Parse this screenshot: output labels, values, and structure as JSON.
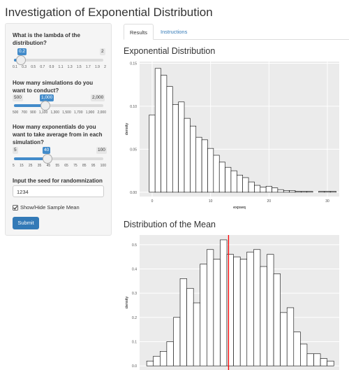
{
  "page_title": "Investigation of Exponential Distribution",
  "sidebar": {
    "lambda": {
      "label": "What is the lambda of the distribution?",
      "value": "0.2",
      "max": "2",
      "ticks": [
        "0.1",
        "0.3",
        "0.5",
        "0.7",
        "0.9",
        "1.1",
        "1.3",
        "1.5",
        "1.7",
        "1.9",
        "2"
      ]
    },
    "simulations": {
      "label": "How many simulations do you want to conduct?",
      "min": "500",
      "value": "1,000",
      "max": "2,000",
      "ticks": [
        "500",
        "700",
        "900",
        "1,100",
        "1,300",
        "1,500",
        "1,700",
        "1,900",
        "2,000"
      ]
    },
    "exponentials": {
      "label": "How many exponentials do you want to take average from in each simulation?",
      "min": "5",
      "value": "40",
      "max": "100",
      "ticks": [
        "5",
        "15",
        "25",
        "35",
        "45",
        "55",
        "65",
        "75",
        "85",
        "95",
        "100"
      ]
    },
    "seed": {
      "label": "Input the seed for randomnization",
      "value": "1234"
    },
    "checkbox": {
      "label": "Show/Hide Sample Mean"
    },
    "submit": "Submit"
  },
  "tabs": [
    "Results",
    "Instructions"
  ],
  "chart_data": [
    {
      "type": "histogram",
      "title": "Exponential Distribution",
      "xlabel": "expseq",
      "ylabel": "density",
      "bins": [
        -0.5,
        0.5,
        1.5,
        2.5,
        3.5,
        4.5,
        5.5,
        6.5,
        7.5,
        8.5,
        9.5,
        10.5,
        11.5,
        12.5,
        13.5,
        14.5,
        15.5,
        16.5,
        17.5,
        18.5,
        19.5,
        20.5,
        21.5,
        22.5,
        23.5,
        24.5,
        25.5,
        26.5,
        27.5,
        28.5,
        29.5,
        30.5,
        31.5
      ],
      "values": [
        0.09,
        0.144,
        0.136,
        0.123,
        0.102,
        0.105,
        0.086,
        0.077,
        0.064,
        0.061,
        0.051,
        0.043,
        0.035,
        0.029,
        0.025,
        0.02,
        0.017,
        0.012,
        0.008,
        0.006,
        0.007,
        0.005,
        0.003,
        0.002,
        0.002,
        0.001,
        0.001,
        0.001,
        0,
        0.001,
        0.001,
        0.001
      ],
      "xlim": [
        -2.15,
        32.03
      ],
      "ylim": [
        -0.005,
        0.152
      ],
      "xticks": [
        0,
        10,
        20,
        30
      ],
      "yticks": [
        {
          "value": 0,
          "label": "0.00"
        },
        {
          "value": 0.05,
          "label": "0.05"
        },
        {
          "value": 0.1,
          "label": "0.10"
        },
        {
          "value": 0.15,
          "label": "0.15"
        }
      ],
      "grid": true
    },
    {
      "type": "histogram",
      "title": "Distribution of the Mean",
      "ylabel": "density",
      "bins": [
        3.0,
        3.16,
        3.32,
        3.48,
        3.64,
        3.8,
        3.96,
        4.12,
        4.28,
        4.44,
        4.6,
        4.76,
        4.92,
        5.08,
        5.24,
        5.4,
        5.56,
        5.72,
        5.88,
        6.04,
        6.2,
        6.36,
        6.52,
        6.68,
        6.84,
        7.0,
        7.16,
        7.32,
        7.48
      ],
      "values": [
        0.02,
        0.04,
        0.06,
        0.1,
        0.2,
        0.36,
        0.32,
        0.26,
        0.42,
        0.48,
        0.44,
        0.52,
        0.46,
        0.45,
        0.44,
        0.47,
        0.48,
        0.41,
        0.46,
        0.38,
        0.22,
        0.24,
        0.14,
        0.09,
        0.05,
        0.05,
        0.03,
        0.02
      ],
      "mean_line": 4.96,
      "mean_color": "#ff0000",
      "xlim": [
        2.83,
        7.61
      ],
      "ylim": [
        -0.017,
        0.54
      ],
      "yticks": [
        {
          "value": 0,
          "label": "0.0"
        },
        {
          "value": 0.1,
          "label": "0.1"
        },
        {
          "value": 0.2,
          "label": "0.2"
        },
        {
          "value": 0.3,
          "label": "0.3"
        },
        {
          "value": 0.4,
          "label": "0.4"
        },
        {
          "value": 0.5,
          "label": "0.5"
        }
      ],
      "grid": true
    }
  ]
}
